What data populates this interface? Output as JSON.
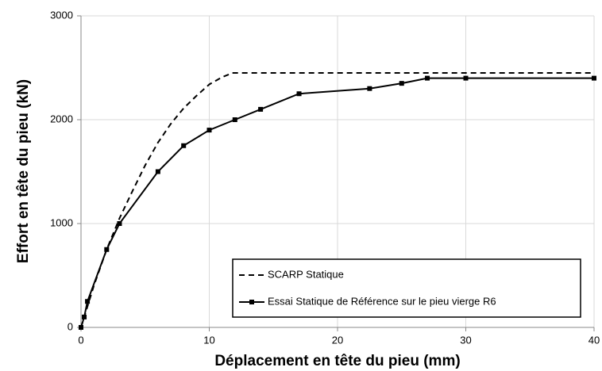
{
  "chart_data": {
    "type": "line",
    "xlabel": "Déplacement en tête du pieu (mm)",
    "ylabel": "Effort en tête du pieu (kN)",
    "xlim": [
      0,
      40
    ],
    "xticks": [
      0,
      10,
      20,
      30,
      40
    ],
    "ylim": [
      0,
      3000
    ],
    "yticks": [
      0,
      1000,
      2000,
      3000
    ],
    "grid": true,
    "legend": "lower right",
    "series": [
      {
        "name": "SCARP Statique",
        "color": "#000000",
        "dash": true,
        "marker": "none",
        "x": [
          0,
          0.5,
          1,
          2,
          3,
          4,
          5,
          6,
          7,
          8,
          9,
          10,
          11,
          11.8,
          40
        ],
        "values": [
          0,
          200,
          400,
          750,
          1050,
          1310,
          1560,
          1780,
          1960,
          2110,
          2230,
          2340,
          2410,
          2450,
          2450
        ]
      },
      {
        "name": "Essai Statique de Référence sur le pieu vierge R6",
        "color": "#000000",
        "dash": false,
        "marker": "square",
        "x": [
          0,
          0.25,
          0.5,
          2,
          3,
          6,
          8,
          10,
          12,
          14,
          17,
          22.5,
          25,
          27,
          30,
          40
        ],
        "values": [
          0,
          100,
          250,
          750,
          1000,
          1500,
          1750,
          1900,
          2000,
          2100,
          2250,
          2300,
          2350,
          2400,
          2400,
          2400
        ]
      }
    ]
  }
}
